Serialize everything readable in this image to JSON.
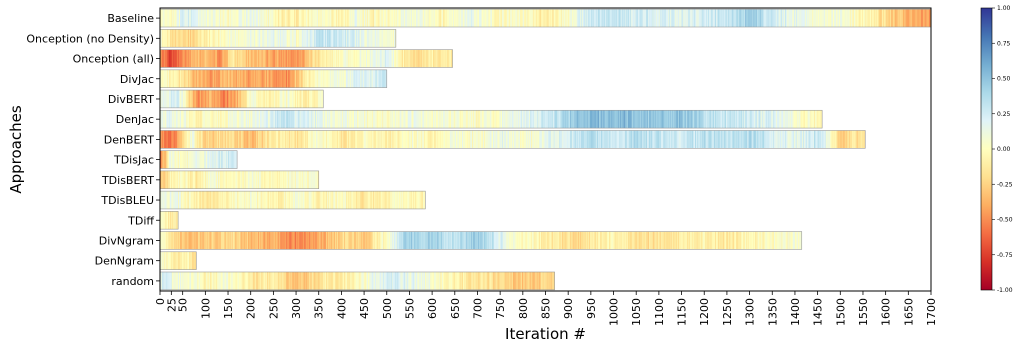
{
  "chart_data": {
    "type": "heatmap",
    "xlabel": "Iteration #",
    "ylabel": "Approaches",
    "xlim": [
      0,
      1700
    ],
    "x_ticks": [
      0,
      25,
      50,
      100,
      150,
      200,
      250,
      300,
      350,
      400,
      450,
      500,
      550,
      600,
      650,
      700,
      750,
      800,
      850,
      900,
      950,
      1000,
      1050,
      1100,
      1150,
      1200,
      1250,
      1300,
      1350,
      1400,
      1450,
      1500,
      1550,
      1600,
      1650,
      1700
    ],
    "colorbar": {
      "range": [
        -1.0,
        1.0
      ],
      "colormap": "RdYlBu",
      "ticks": [
        "1.00",
        "0.75",
        "0.50",
        "0.25",
        "0.00",
        "-0.25",
        "-0.50",
        "-0.75",
        "-1.00"
      ],
      "tick_values": [
        1.0,
        0.75,
        0.5,
        0.25,
        0.0,
        -0.25,
        -0.5,
        -0.75,
        -1.0
      ]
    },
    "series": [
      {
        "name": "Baseline",
        "length": 1700,
        "keyframes": [
          [
            0,
            0.02
          ],
          [
            30,
            0.05
          ],
          [
            60,
            0.25
          ],
          [
            100,
            0.1
          ],
          [
            150,
            0.0
          ],
          [
            200,
            0.15
          ],
          [
            260,
            -0.05
          ],
          [
            300,
            -0.1
          ],
          [
            350,
            0.05
          ],
          [
            400,
            -0.1
          ],
          [
            430,
            0.12
          ],
          [
            470,
            -0.05
          ],
          [
            520,
            0.05
          ],
          [
            560,
            0.1
          ],
          [
            620,
            -0.05
          ],
          [
            680,
            0.15
          ],
          [
            740,
            0.0
          ],
          [
            800,
            0.05
          ],
          [
            850,
            -0.15
          ],
          [
            900,
            0.05
          ],
          [
            960,
            0.3
          ],
          [
            1050,
            0.25
          ],
          [
            1150,
            0.2
          ],
          [
            1250,
            0.3
          ],
          [
            1300,
            0.45
          ],
          [
            1350,
            0.25
          ],
          [
            1400,
            0.15
          ],
          [
            1450,
            0.05
          ],
          [
            1500,
            0.1
          ],
          [
            1550,
            -0.05
          ],
          [
            1600,
            -0.2
          ],
          [
            1650,
            -0.4
          ],
          [
            1700,
            -0.45
          ]
        ]
      },
      {
        "name": "Onception (no Density)",
        "length": 520,
        "keyframes": [
          [
            0,
            0.05
          ],
          [
            20,
            -0.15
          ],
          [
            60,
            -0.25
          ],
          [
            100,
            -0.1
          ],
          [
            150,
            0.05
          ],
          [
            200,
            0.1
          ],
          [
            250,
            0.15
          ],
          [
            300,
            0.05
          ],
          [
            350,
            0.3
          ],
          [
            400,
            0.25
          ],
          [
            450,
            0.15
          ],
          [
            520,
            0.05
          ]
        ]
      },
      {
        "name": "Onception (all)",
        "length": 645,
        "keyframes": [
          [
            0,
            -0.5
          ],
          [
            20,
            -0.7
          ],
          [
            40,
            -0.6
          ],
          [
            60,
            -0.45
          ],
          [
            100,
            -0.3
          ],
          [
            130,
            -0.45
          ],
          [
            160,
            -0.15
          ],
          [
            200,
            -0.35
          ],
          [
            250,
            -0.4
          ],
          [
            300,
            -0.5
          ],
          [
            340,
            -0.2
          ],
          [
            380,
            -0.05
          ],
          [
            420,
            0.05
          ],
          [
            470,
            0.1
          ],
          [
            500,
            0.2
          ],
          [
            530,
            -0.1
          ],
          [
            570,
            -0.2
          ],
          [
            600,
            -0.1
          ],
          [
            645,
            -0.15
          ]
        ]
      },
      {
        "name": "DivJac",
        "length": 500,
        "keyframes": [
          [
            0,
            0.0
          ],
          [
            30,
            -0.05
          ],
          [
            70,
            -0.3
          ],
          [
            110,
            -0.45
          ],
          [
            150,
            -0.35
          ],
          [
            200,
            -0.45
          ],
          [
            240,
            -0.4
          ],
          [
            280,
            -0.5
          ],
          [
            300,
            -0.3
          ],
          [
            340,
            0.0
          ],
          [
            380,
            0.05
          ],
          [
            420,
            0.15
          ],
          [
            460,
            0.2
          ],
          [
            500,
            0.25
          ]
        ]
      },
      {
        "name": "DivBERT",
        "length": 360,
        "keyframes": [
          [
            0,
            0.05
          ],
          [
            30,
            0.25
          ],
          [
            50,
            0.1
          ],
          [
            80,
            -0.5
          ],
          [
            110,
            -0.35
          ],
          [
            140,
            -0.55
          ],
          [
            170,
            -0.4
          ],
          [
            200,
            0.05
          ],
          [
            240,
            -0.05
          ],
          [
            280,
            0.05
          ],
          [
            320,
            -0.1
          ],
          [
            360,
            0.05
          ]
        ]
      },
      {
        "name": "DenJac",
        "length": 1460,
        "keyframes": [
          [
            0,
            0.1
          ],
          [
            40,
            0.15
          ],
          [
            80,
            -0.05
          ],
          [
            150,
            0.05
          ],
          [
            220,
            0.1
          ],
          [
            270,
            0.3
          ],
          [
            320,
            0.2
          ],
          [
            380,
            0.1
          ],
          [
            450,
            0.05
          ],
          [
            500,
            0.0
          ],
          [
            550,
            0.1
          ],
          [
            600,
            0.05
          ],
          [
            700,
            0.0
          ],
          [
            800,
            0.15
          ],
          [
            870,
            0.3
          ],
          [
            920,
            0.5
          ],
          [
            1000,
            0.55
          ],
          [
            1100,
            0.45
          ],
          [
            1150,
            0.5
          ],
          [
            1200,
            0.35
          ],
          [
            1250,
            0.3
          ],
          [
            1300,
            0.25
          ],
          [
            1350,
            0.2
          ],
          [
            1400,
            0.05
          ],
          [
            1460,
            -0.05
          ]
        ]
      },
      {
        "name": "DenBERT",
        "length": 1555,
        "keyframes": [
          [
            0,
            -0.45
          ],
          [
            20,
            -0.6
          ],
          [
            40,
            -0.4
          ],
          [
            70,
            0.1
          ],
          [
            100,
            -0.3
          ],
          [
            150,
            -0.15
          ],
          [
            200,
            -0.35
          ],
          [
            250,
            -0.1
          ],
          [
            300,
            -0.2
          ],
          [
            350,
            0.05
          ],
          [
            400,
            -0.15
          ],
          [
            450,
            0.0
          ],
          [
            500,
            -0.1
          ],
          [
            550,
            0.05
          ],
          [
            600,
            -0.05
          ],
          [
            650,
            0.1
          ],
          [
            700,
            0.0
          ],
          [
            750,
            0.15
          ],
          [
            800,
            0.0
          ],
          [
            850,
            0.15
          ],
          [
            900,
            0.25
          ],
          [
            950,
            0.35
          ],
          [
            1000,
            0.3
          ],
          [
            1050,
            0.35
          ],
          [
            1100,
            0.3
          ],
          [
            1150,
            0.25
          ],
          [
            1200,
            0.35
          ],
          [
            1250,
            0.3
          ],
          [
            1300,
            0.35
          ],
          [
            1350,
            0.25
          ],
          [
            1400,
            0.15
          ],
          [
            1450,
            0.3
          ],
          [
            1480,
            0.05
          ],
          [
            1500,
            -0.3
          ],
          [
            1530,
            -0.15
          ],
          [
            1555,
            -0.25
          ]
        ]
      },
      {
        "name": "TDisJac",
        "length": 170,
        "keyframes": [
          [
            0,
            -0.55
          ],
          [
            10,
            -0.3
          ],
          [
            20,
            0.05
          ],
          [
            60,
            0.0
          ],
          [
            100,
            0.15
          ],
          [
            140,
            0.25
          ],
          [
            170,
            0.2
          ]
        ]
      },
      {
        "name": "TDisBERT",
        "length": 350,
        "keyframes": [
          [
            0,
            -0.35
          ],
          [
            20,
            -0.1
          ],
          [
            40,
            0.0
          ],
          [
            80,
            -0.1
          ],
          [
            120,
            0.05
          ],
          [
            160,
            -0.05
          ],
          [
            200,
            0.05
          ],
          [
            250,
            -0.05
          ],
          [
            300,
            0.05
          ],
          [
            350,
            0.0
          ]
        ]
      },
      {
        "name": "TDisBLEU",
        "length": 585,
        "keyframes": [
          [
            0,
            0.2
          ],
          [
            20,
            0.1
          ],
          [
            50,
            0.05
          ],
          [
            100,
            -0.15
          ],
          [
            150,
            -0.05
          ],
          [
            200,
            0.05
          ],
          [
            250,
            -0.1
          ],
          [
            300,
            0.05
          ],
          [
            350,
            -0.05
          ],
          [
            400,
            0.0
          ],
          [
            450,
            -0.15
          ],
          [
            500,
            -0.05
          ],
          [
            550,
            0.0
          ],
          [
            585,
            -0.05
          ]
        ]
      },
      {
        "name": "TDiff",
        "length": 40,
        "keyframes": [
          [
            0,
            -0.05
          ],
          [
            20,
            -0.1
          ],
          [
            40,
            -0.05
          ]
        ]
      },
      {
        "name": "DivNgram",
        "length": 1415,
        "keyframes": [
          [
            0,
            0.05
          ],
          [
            20,
            -0.1
          ],
          [
            40,
            -0.3
          ],
          [
            100,
            -0.3
          ],
          [
            150,
            -0.2
          ],
          [
            200,
            -0.35
          ],
          [
            260,
            -0.4
          ],
          [
            300,
            -0.55
          ],
          [
            350,
            -0.4
          ],
          [
            400,
            -0.2
          ],
          [
            450,
            -0.3
          ],
          [
            500,
            0.05
          ],
          [
            550,
            0.45
          ],
          [
            600,
            0.4
          ],
          [
            650,
            0.3
          ],
          [
            700,
            0.45
          ],
          [
            750,
            0.2
          ],
          [
            800,
            0.0
          ],
          [
            850,
            -0.1
          ],
          [
            900,
            -0.2
          ],
          [
            950,
            -0.15
          ],
          [
            1000,
            -0.05
          ],
          [
            1050,
            -0.15
          ],
          [
            1100,
            -0.2
          ],
          [
            1150,
            -0.1
          ],
          [
            1200,
            -0.05
          ],
          [
            1250,
            -0.15
          ],
          [
            1300,
            -0.05
          ],
          [
            1350,
            0.0
          ],
          [
            1415,
            0.05
          ]
        ]
      },
      {
        "name": "DenNgram",
        "length": 80,
        "keyframes": [
          [
            0,
            0.05
          ],
          [
            20,
            0.0
          ],
          [
            40,
            -0.1
          ],
          [
            60,
            -0.05
          ],
          [
            80,
            -0.2
          ]
        ]
      },
      {
        "name": "random",
        "length": 870,
        "keyframes": [
          [
            0,
            0.15
          ],
          [
            15,
            0.3
          ],
          [
            30,
            0.05
          ],
          [
            60,
            0.1
          ],
          [
            100,
            -0.05
          ],
          [
            150,
            0.05
          ],
          [
            200,
            -0.15
          ],
          [
            250,
            -0.1
          ],
          [
            300,
            -0.35
          ],
          [
            350,
            -0.15
          ],
          [
            400,
            -0.1
          ],
          [
            450,
            0.05
          ],
          [
            500,
            0.25
          ],
          [
            550,
            0.15
          ],
          [
            600,
            0.05
          ],
          [
            650,
            -0.1
          ],
          [
            700,
            -0.15
          ],
          [
            750,
            -0.2
          ],
          [
            800,
            -0.3
          ],
          [
            850,
            -0.25
          ],
          [
            870,
            -0.3
          ]
        ]
      }
    ]
  }
}
